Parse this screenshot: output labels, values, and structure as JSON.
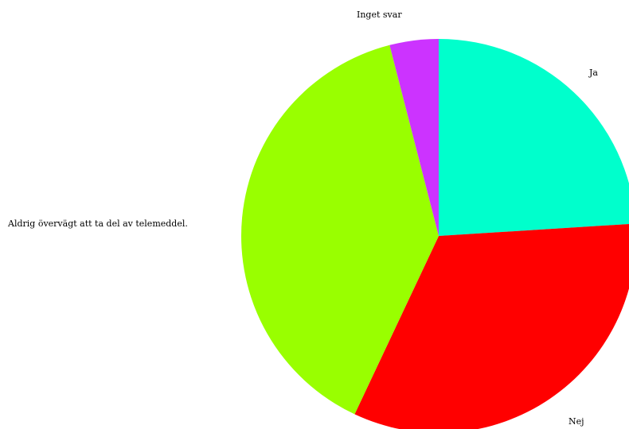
{
  "chart_data": {
    "type": "pie",
    "title": "",
    "start_angle_deg": 0,
    "direction": "clockwise",
    "slices": [
      {
        "label": "Ja",
        "value": 24.0,
        "color": "#00ffcc"
      },
      {
        "label": "Nej",
        "value": 33.0,
        "color": "#ff0000"
      },
      {
        "label": "Aldrig övervägt att ta del av telemeddel.",
        "value": 39.0,
        "color": "#99ff00"
      },
      {
        "label": "Inget svar",
        "value": 4.0,
        "color": "#cc33ff"
      }
    ]
  }
}
